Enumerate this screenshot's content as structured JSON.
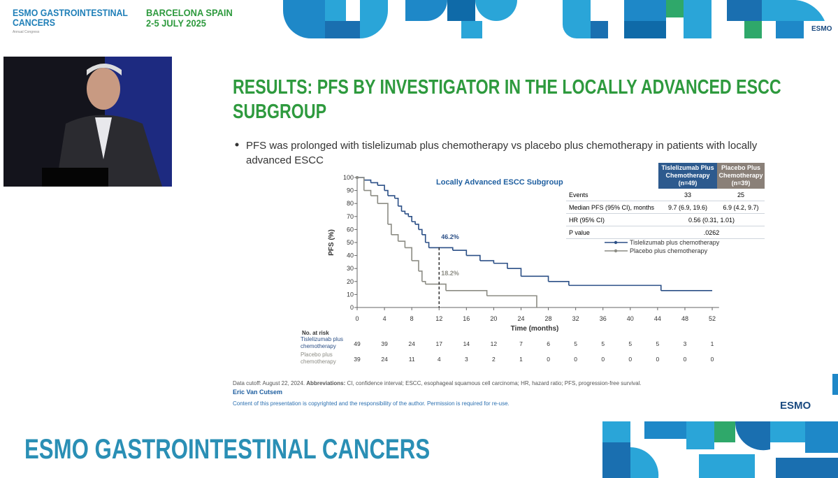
{
  "header": {
    "congress_line1": "ESMO GASTROINTESTINAL",
    "congress_line2": "CANCERS",
    "congress_sub": "Annual Congress",
    "city": "BARCELONA SPAIN",
    "dates": "2-5 JULY 2025",
    "logo": "ESMO"
  },
  "slide": {
    "title": "RESULTS: PFS BY INVESTIGATOR IN THE LOCALLY ADVANCED ESCC SUBGROUP",
    "bullet": "PFS was prolonged with tislelizumab plus chemotherapy vs placebo plus chemotherapy in patients with locally advanced ESCC",
    "summary_table": {
      "headers": [
        [
          "Tislelizumab Plus",
          "Chemotherapy",
          "(n=49)"
        ],
        [
          "Placebo Plus",
          "Chemotherapy",
          "(n=39)"
        ]
      ],
      "rows": [
        [
          "Events",
          "33",
          "25"
        ],
        [
          "Median PFS (95% CI), months",
          "9.7 (6.9, 19.6)",
          "6.9 (4.2, 9.7)"
        ],
        [
          "HR (95% CI)",
          "0.56 (0.31, 1.01)"
        ],
        [
          "P value",
          ".0262"
        ]
      ]
    },
    "data_cutoff": "Data cutoff: August 22, 2024.",
    "abbreviations_label": "Abbreviations:",
    "abbreviations": "CI, confidence interval; ESCC, esophageal squamous cell carcinoma; HR, hazard ratio; PFS, progression-free survival.",
    "author": "Eric Van Cutsem",
    "copyright": "Content of this presentation is copyrighted and the responsibility of the author. Permission is required for re-use.",
    "logo": "ESMO"
  },
  "chart_data": {
    "type": "line",
    "step": true,
    "title": "Locally Advanced ESCC Subgroup",
    "x_label": "Time (months)",
    "y_label": "PFS (%)",
    "xlim": [
      0,
      53
    ],
    "ylim": [
      0,
      100
    ],
    "xticks": [
      0,
      4,
      8,
      12,
      16,
      20,
      24,
      28,
      32,
      36,
      40,
      44,
      48,
      52
    ],
    "yticks": [
      0,
      10,
      20,
      30,
      40,
      50,
      60,
      70,
      80,
      90,
      100
    ],
    "series": [
      {
        "name": "Tislelizumab plus chemotherapy",
        "color": "#2b4f86",
        "x": [
          0,
          1,
          2,
          3,
          4,
          4.5,
          5.5,
          6,
          6.5,
          7,
          7.5,
          8,
          8.5,
          9,
          9.5,
          10,
          10.5,
          14,
          16,
          18,
          20,
          22,
          24,
          28,
          31,
          44.5,
          52
        ],
        "values": [
          100,
          98,
          96,
          94,
          90,
          86,
          84,
          78,
          74,
          72,
          70,
          66,
          64,
          60,
          56,
          50,
          46,
          44,
          40,
          36,
          34,
          30,
          24,
          20,
          17,
          13,
          13
        ]
      },
      {
        "name": "Placebo plus chemotherapy",
        "color": "#8c8c84",
        "x": [
          0,
          1,
          2,
          3,
          4.5,
          5,
          6,
          7,
          8,
          9,
          9.5,
          10,
          13,
          19,
          26.3
        ],
        "values": [
          100,
          90,
          86,
          80,
          64,
          56,
          51,
          46,
          36,
          28,
          20,
          18,
          13,
          9,
          0
        ]
      }
    ],
    "annotations": [
      {
        "x": 12,
        "value": 46.2,
        "label": "46.2%"
      },
      {
        "x": 12,
        "value": 18.2,
        "label": "18.2%"
      }
    ],
    "risk_table": {
      "title": "No. at risk",
      "rows": [
        {
          "name": "Tislelizumab plus chemotherapy",
          "values": [
            49,
            39,
            24,
            17,
            14,
            12,
            7,
            6,
            5,
            5,
            5,
            5,
            3,
            1
          ]
        },
        {
          "name": "Placebo plus chemotherapy",
          "values": [
            39,
            24,
            11,
            4,
            3,
            2,
            1,
            0,
            0,
            0,
            0,
            0,
            0,
            0
          ]
        }
      ]
    }
  },
  "footer": {
    "banner": "ESMO GASTROINTESTINAL CANCERS"
  }
}
